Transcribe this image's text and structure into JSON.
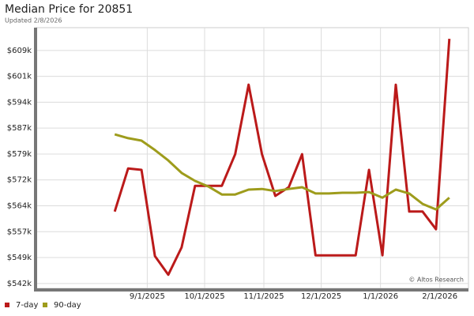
{
  "chart_data": {
    "type": "line",
    "title": "Median Price for 20851",
    "subtitle": "Updated 2/8/2026",
    "annotation": "© Altos Research",
    "x": [
      "8/15/2025",
      "8/22/2025",
      "8/29/2025",
      "9/5/2025",
      "9/12/2025",
      "9/19/2025",
      "9/26/2025",
      "10/3/2025",
      "10/10/2025",
      "10/17/2025",
      "10/24/2025",
      "10/31/2025",
      "11/7/2025",
      "11/14/2025",
      "11/21/2025",
      "11/28/2025",
      "12/5/2025",
      "12/12/2025",
      "12/19/2025",
      "12/26/2025",
      "1/2/2026",
      "1/9/2026",
      "1/16/2026",
      "1/23/2026",
      "1/30/2026",
      "2/6/2026"
    ],
    "series": [
      {
        "name": "7-day",
        "color": "#bb1a1a",
        "values": [
          562500,
          574900,
          574500,
          549700,
          544300,
          552200,
          569900,
          569900,
          569900,
          579000,
          599000,
          579000,
          567000,
          569500,
          579000,
          549900,
          549900,
          549900,
          549900,
          574500,
          549900,
          599000,
          562500,
          562500,
          557400,
          612200
        ]
      },
      {
        "name": "90-day",
        "color": "#9e9c1c",
        "values": [
          584700,
          583600,
          582900,
          580200,
          577200,
          573600,
          571300,
          569700,
          567400,
          567400,
          568800,
          569000,
          568400,
          569000,
          569500,
          567700,
          567700,
          567900,
          567900,
          568100,
          566500,
          568800,
          567700,
          564700,
          563100,
          566500
        ]
      }
    ],
    "xlim": [
      "7/5/2025",
      "2/16/2026"
    ],
    "xticks": [
      "9/1/2025",
      "10/1/2025",
      "11/1/2025",
      "12/1/2025",
      "1/1/2026",
      "2/1/2026"
    ],
    "ylim": [
      540400,
      615400
    ],
    "yticks": [
      {
        "value": 541800,
        "label": "$542k"
      },
      {
        "value": 549250,
        "label": "$549k"
      },
      {
        "value": 556700,
        "label": "$557k"
      },
      {
        "value": 564150,
        "label": "$564k"
      },
      {
        "value": 571600,
        "label": "$572k"
      },
      {
        "value": 579050,
        "label": "$579k"
      },
      {
        "value": 586500,
        "label": "$587k"
      },
      {
        "value": 593950,
        "label": "$594k"
      },
      {
        "value": 601400,
        "label": "$601k"
      },
      {
        "value": 608850,
        "label": "$609k"
      }
    ],
    "grid": true,
    "legend": "bottom-left"
  }
}
